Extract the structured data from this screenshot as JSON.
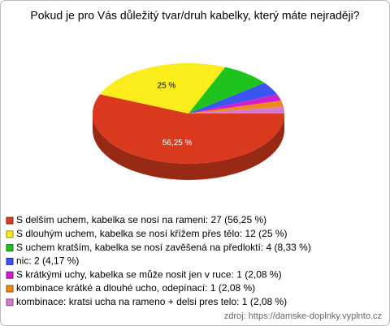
{
  "chart_data": {
    "type": "pie",
    "title": "Pokud je pro Vás důležitý tvar/druh kabelky, který máte nejraději?",
    "categories": [
      "S delším uchem, kabelka se nosí na rameni: 27 (56,25 %)",
      "S dlouhým uchem, kabelka se nosí křížem přes tělo: 12 (25 %)",
      "S uchem kratším, kabelka se nosí zavěšená na předloktí: 4 (8,33 %)",
      "nic: 2 (4,17 %)",
      "S krátkými uchy, kabelka se může nosit jen v ruce: 1 (2,08 %)",
      "kombinace krátké a dlouhé ucho, odepínací: 1 (2,08 %)",
      "kombinace: kratsi ucha na rameno + delsi pres telo: 1 (2,08 %)"
    ],
    "values": [
      56.25,
      25,
      8.33,
      4.17,
      2.08,
      2.08,
      2.08
    ],
    "value_labels": [
      "56,25 %",
      "25 %",
      null,
      null,
      null,
      null,
      null
    ],
    "colors": [
      "#d93a1e",
      "#fbec1c",
      "#1ec31e",
      "#3a55f2",
      "#d01ed0",
      "#ee8a1c",
      "#d47ad4"
    ],
    "source": "zdroj: https://damske-doplnky.vyplnto.cz"
  }
}
